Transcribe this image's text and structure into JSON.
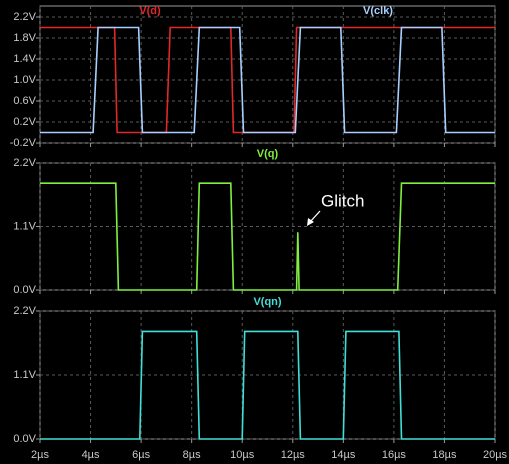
{
  "chart_data": [
    {
      "type": "line",
      "xlim": [
        2,
        20
      ],
      "xticks": [
        2,
        4,
        6,
        8,
        10,
        12,
        14,
        16,
        18,
        20
      ],
      "ylim": [
        -0.2,
        2.2
      ],
      "yticks": [
        {
          "value": 2.2,
          "label": "2.2V"
        },
        {
          "value": 1.8,
          "label": "1.8V"
        },
        {
          "value": 1.4,
          "label": "1.4V"
        },
        {
          "value": 1.0,
          "label": "1.0V"
        },
        {
          "value": 0.6,
          "label": "0.6V"
        },
        {
          "value": 0.2,
          "label": "0.2V"
        },
        {
          "value": -0.2,
          "label": "-0.2V"
        }
      ],
      "grid": true,
      "series": [
        {
          "name": "V(d)",
          "color": "#e02828",
          "x": [
            2,
            4.95,
            5.05,
            7.0,
            7.15,
            9.55,
            9.65,
            12.05,
            12.15,
            20
          ],
          "values": [
            2,
            2,
            0,
            0,
            2,
            2,
            0,
            0,
            2,
            2
          ]
        },
        {
          "name": "V(clk)",
          "color": "#a8d0ff",
          "x": [
            2,
            4.1,
            4.3,
            5.9,
            6.05,
            8.1,
            8.3,
            9.9,
            10.05,
            12.1,
            12.3,
            13.9,
            14.05,
            16.1,
            16.3,
            17.9,
            18.05,
            20
          ],
          "values": [
            0,
            0,
            2,
            2,
            0,
            0,
            2,
            2,
            0,
            0,
            2,
            2,
            0,
            0,
            2,
            2,
            0,
            0
          ]
        }
      ]
    },
    {
      "type": "line",
      "xlim": [
        2,
        20
      ],
      "xticks": [
        2,
        4,
        6,
        8,
        10,
        12,
        14,
        16,
        18,
        20
      ],
      "ylim": [
        0,
        2.2
      ],
      "yticks": [
        {
          "value": 2.2,
          "label": "2.2V"
        },
        {
          "value": 1.1,
          "label": "1.1V"
        },
        {
          "value": 0.0,
          "label": "0.0V"
        }
      ],
      "grid": true,
      "annotation": "Glitch",
      "series": [
        {
          "name": "V(q)",
          "color": "#80f040",
          "x": [
            2,
            5.0,
            5.1,
            8.2,
            8.3,
            9.55,
            9.65,
            12.15,
            12.2,
            12.25,
            16.15,
            16.3,
            20
          ],
          "values": [
            1.85,
            1.85,
            0,
            0,
            1.85,
            1.85,
            0,
            0,
            1.0,
            0,
            0,
            1.85,
            1.85
          ]
        }
      ]
    },
    {
      "type": "line",
      "xlim": [
        2,
        20
      ],
      "xticks": [
        {
          "value": 2,
          "label": "2µs"
        },
        {
          "value": 4,
          "label": "4µs"
        },
        {
          "value": 6,
          "label": "6µs"
        },
        {
          "value": 8,
          "label": "8µs"
        },
        {
          "value": 10,
          "label": "10µs"
        },
        {
          "value": 12,
          "label": "12µs"
        },
        {
          "value": 14,
          "label": "14µs"
        },
        {
          "value": 16,
          "label": "16µs"
        },
        {
          "value": 18,
          "label": "18µs"
        },
        {
          "value": 20,
          "label": "20µs"
        }
      ],
      "ylim": [
        0,
        2.2
      ],
      "yticks": [
        {
          "value": 2.2,
          "label": "2.2V"
        },
        {
          "value": 1.1,
          "label": "1.1V"
        },
        {
          "value": 0.0,
          "label": "0.0V"
        }
      ],
      "grid": true,
      "series": [
        {
          "name": "V(qn)",
          "color": "#40e0d8",
          "x": [
            2,
            5.95,
            6.05,
            8.2,
            8.3,
            10.0,
            10.1,
            12.2,
            12.3,
            14.0,
            14.1,
            16.2,
            16.3,
            20
          ],
          "values": [
            0,
            0,
            1.85,
            1.85,
            0,
            0,
            1.85,
            1.85,
            0,
            0,
            1.85,
            1.85,
            0,
            0
          ]
        }
      ]
    }
  ]
}
